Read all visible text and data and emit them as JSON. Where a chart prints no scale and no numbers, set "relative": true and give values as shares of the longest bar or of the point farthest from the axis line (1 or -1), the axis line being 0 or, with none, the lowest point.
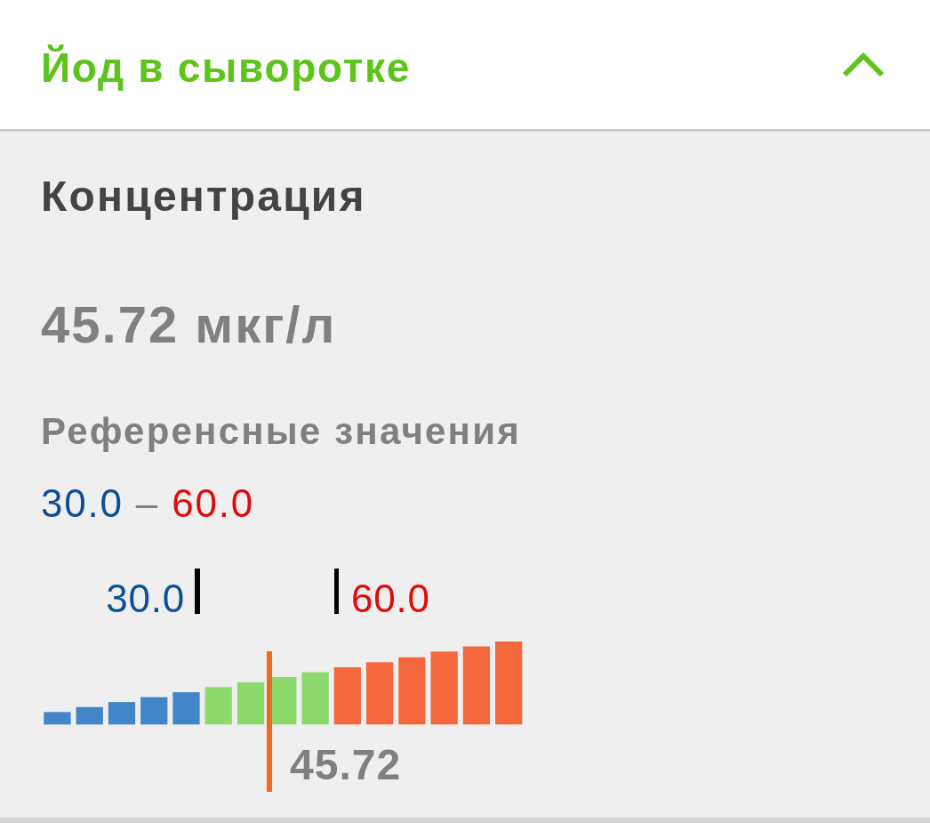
{
  "chart_data": {
    "type": "bar",
    "title": "Йод в сыворотке",
    "subtitle": "Концентрация",
    "annotations": [
      "45.72 мкг/л",
      "Референсные значения",
      "30.0 – 60.0",
      "30.0",
      "60.0",
      "45.72"
    ],
    "categories": [
      null,
      null,
      null,
      null,
      null,
      null,
      null,
      null,
      null,
      null,
      null,
      null,
      null,
      null,
      null
    ],
    "values": [
      0.15,
      0.21,
      0.27,
      0.33,
      0.39,
      0.45,
      0.51,
      0.57,
      0.63,
      0.69,
      0.75,
      0.81,
      0.88,
      0.94,
      1
    ],
    "colors": [
      "#4285c8",
      "#4285c8",
      "#4285c8",
      "#4285c8",
      "#4285c8",
      "#8cda6e",
      "#8cda6e",
      "#8cda6e",
      "#8cda6e",
      "#f5683e",
      "#f5683e",
      "#f5683e",
      "#f5683e",
      "#f5683e",
      "#f5683e"
    ],
    "relative": true
  }
}
